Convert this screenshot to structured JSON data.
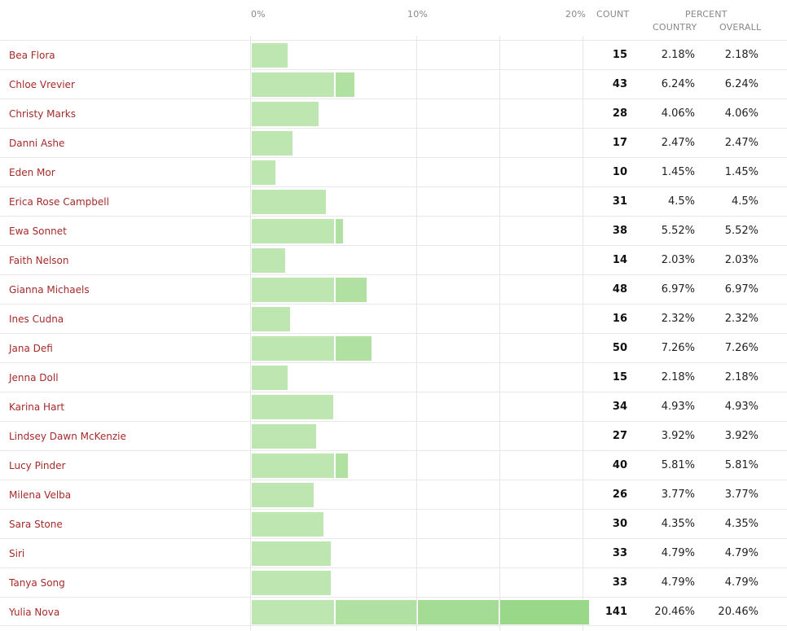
{
  "chart_data": {
    "type": "bar",
    "orientation": "horizontal",
    "xlim": [
      0,
      20
    ],
    "ticks": [
      "0%",
      "10%",
      "20%"
    ],
    "columns": {
      "count": "COUNT",
      "percent": "PERCENT",
      "country": "COUNTRY",
      "overall": "OVERALL"
    },
    "bar_color": "#a6dd95",
    "label_color": "#a52a2a",
    "rows": [
      {
        "name": "Bea Flora",
        "count": "15",
        "country": "2.18%",
        "overall": "2.18%",
        "value": 2.18
      },
      {
        "name": "Chloe Vrevier",
        "count": "43",
        "country": "6.24%",
        "overall": "6.24%",
        "value": 6.24
      },
      {
        "name": "Christy Marks",
        "count": "28",
        "country": "4.06%",
        "overall": "4.06%",
        "value": 4.06
      },
      {
        "name": "Danni Ashe",
        "count": "17",
        "country": "2.47%",
        "overall": "2.47%",
        "value": 2.47
      },
      {
        "name": "Eden Mor",
        "count": "10",
        "country": "1.45%",
        "overall": "1.45%",
        "value": 1.45
      },
      {
        "name": "Erica Rose Campbell",
        "count": "31",
        "country": "4.5%",
        "overall": "4.5%",
        "value": 4.5
      },
      {
        "name": "Ewa Sonnet",
        "count": "38",
        "country": "5.52%",
        "overall": "5.52%",
        "value": 5.52
      },
      {
        "name": "Faith Nelson",
        "count": "14",
        "country": "2.03%",
        "overall": "2.03%",
        "value": 2.03
      },
      {
        "name": "Gianna Michaels",
        "count": "48",
        "country": "6.97%",
        "overall": "6.97%",
        "value": 6.97
      },
      {
        "name": "Ines Cudna",
        "count": "16",
        "country": "2.32%",
        "overall": "2.32%",
        "value": 2.32
      },
      {
        "name": "Jana Defi",
        "count": "50",
        "country": "7.26%",
        "overall": "7.26%",
        "value": 7.26
      },
      {
        "name": "Jenna Doll",
        "count": "15",
        "country": "2.18%",
        "overall": "2.18%",
        "value": 2.18
      },
      {
        "name": "Karina Hart",
        "count": "34",
        "country": "4.93%",
        "overall": "4.93%",
        "value": 4.93
      },
      {
        "name": "Lindsey Dawn McKenzie",
        "count": "27",
        "country": "3.92%",
        "overall": "3.92%",
        "value": 3.92
      },
      {
        "name": "Lucy Pinder",
        "count": "40",
        "country": "5.81%",
        "overall": "5.81%",
        "value": 5.81
      },
      {
        "name": "Milena Velba",
        "count": "26",
        "country": "3.77%",
        "overall": "3.77%",
        "value": 3.77
      },
      {
        "name": "Sara Stone",
        "count": "30",
        "country": "4.35%",
        "overall": "4.35%",
        "value": 4.35
      },
      {
        "name": "Siri",
        "count": "33",
        "country": "4.79%",
        "overall": "4.79%",
        "value": 4.79
      },
      {
        "name": "Tanya Song",
        "count": "33",
        "country": "4.79%",
        "overall": "4.79%",
        "value": 4.79
      },
      {
        "name": "Yulia Nova",
        "count": "141",
        "country": "20.46%",
        "overall": "20.46%",
        "value": 20.46
      }
    ]
  }
}
